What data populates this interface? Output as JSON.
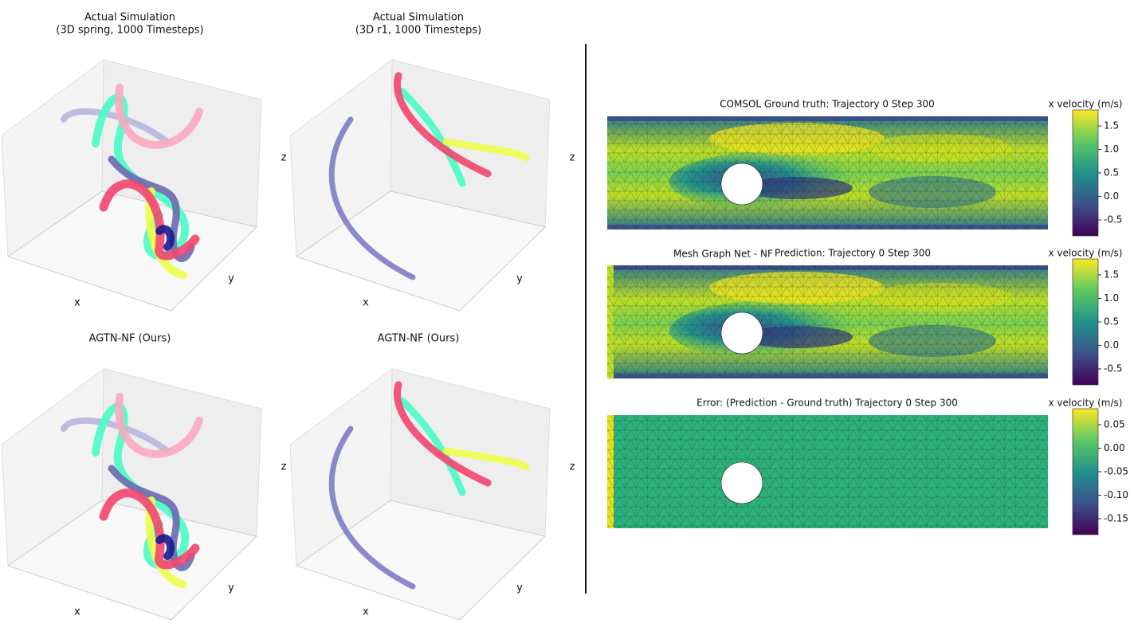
{
  "left_panels": [
    {
      "title": "Actual Simulation",
      "subtitle": "(3D spring, 1000 Timesteps)",
      "xlabel": "x",
      "ylabel": "y",
      "zlabel": "z"
    },
    {
      "title": "Actual Simulation",
      "subtitle": "(3D r1, 1000 Timesteps)",
      "xlabel": "x",
      "ylabel": "y",
      "zlabel": "z"
    },
    {
      "title": "AGTN-NF (Ours)",
      "xlabel": "x",
      "ylabel": "y",
      "zlabel": "z"
    },
    {
      "title": "AGTN-NF (Ours)",
      "xlabel": "x",
      "ylabel": "y",
      "zlabel": "z"
    }
  ],
  "right_panels": [
    {
      "title": "COMSOL Ground truth: Trajectory 0 Step 300",
      "colorbar_label": "x velocity (m/s)",
      "colorbar_ticks": [
        "1.5",
        "1.0",
        "0.5",
        "0.0",
        "-0.5"
      ]
    },
    {
      "side_label": "Mesh Graph Net - NF",
      "title": "Prediction: Trajectory 0 Step 300",
      "colorbar_label": "x velocity (m/s)",
      "colorbar_ticks": [
        "1.5",
        "1.0",
        "0.5",
        "0.0",
        "-0.5"
      ]
    },
    {
      "title": "Error: (Prediction - Ground truth) Trajectory 0 Step 300",
      "colorbar_label": "x velocity (m/s)",
      "colorbar_ticks": [
        "0.05",
        "0.00",
        "-0.05",
        "-0.10",
        "-0.15"
      ]
    }
  ]
}
